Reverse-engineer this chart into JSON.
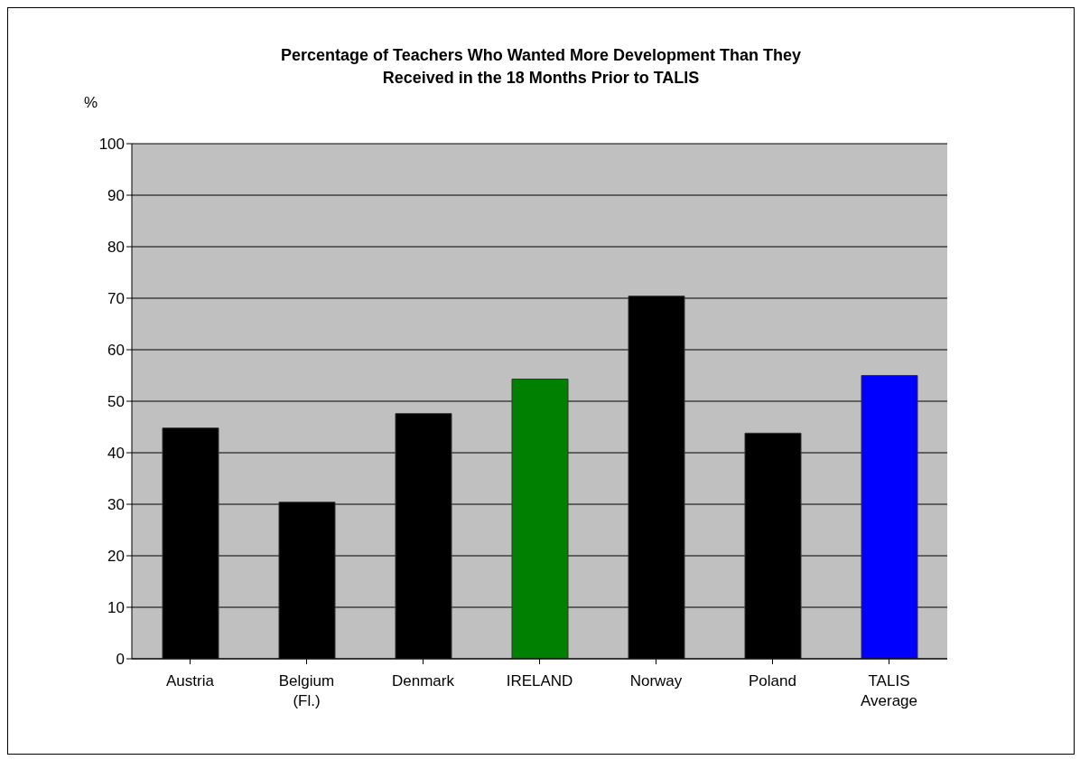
{
  "chart_data": {
    "type": "bar",
    "title": "Percentage of Teachers Who Wanted More Development Than They Received in the 18 Months Prior to TALIS",
    "ylabel": "%",
    "categories": [
      "Austria",
      "Belgium (Fl.)",
      "Denmark",
      "IRELAND",
      "Norway",
      "Poland",
      "TALIS Average"
    ],
    "values": [
      44.8,
      30.4,
      47.6,
      54.3,
      70.4,
      43.8,
      55.0
    ],
    "colors": [
      "#000000",
      "#000000",
      "#000000",
      "#008000",
      "#000000",
      "#000000",
      "#0000ff"
    ],
    "ylim": [
      0,
      100
    ],
    "yticks": [
      0,
      10,
      20,
      30,
      40,
      50,
      60,
      70,
      80,
      90,
      100
    ],
    "grid": "y"
  }
}
